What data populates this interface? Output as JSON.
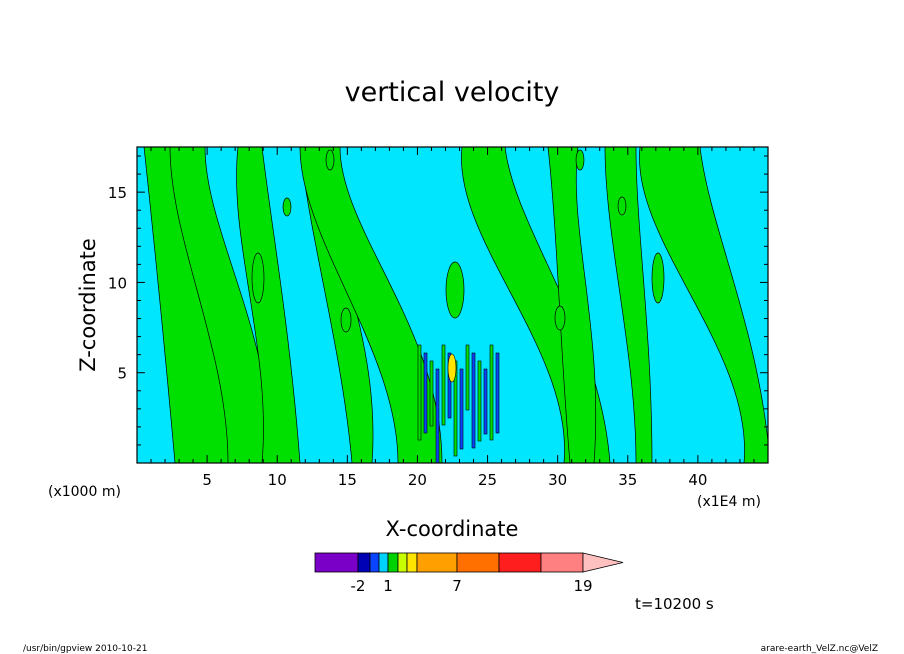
{
  "chart_data": {
    "type": "heatmap",
    "title": "vertical velocity",
    "xlabel": "X-coordinate",
    "ylabel": "Z-coordinate",
    "x_unit_label": "(x1000 m)",
    "x_scale_label": "(x1E4 m)",
    "xlim": [
      0,
      45
    ],
    "ylim": [
      0,
      17.5
    ],
    "x_ticks": [
      5,
      10,
      15,
      20,
      25,
      30,
      35,
      40
    ],
    "y_ticks": [
      5,
      10,
      15
    ],
    "colorbar": {
      "colors": [
        "#7a00c8",
        "#0000b4",
        "#0a44ff",
        "#00d2ff",
        "#00d200",
        "#c8ff00",
        "#ffe400",
        "#ffa000",
        "#ff7000",
        "#ff1e1e",
        "#ff8080",
        "#ffc0c0"
      ],
      "tick_labels": [
        "-2",
        "1",
        "7",
        "19"
      ]
    },
    "background_color": "#00e6ff",
    "positive_color": "#00e000",
    "time_label": "t=10200 s",
    "footer_left": "/usr/bin/gpview   2010-10-21",
    "footer_right": "arare-earth_VelZ.nc@VelZ"
  }
}
